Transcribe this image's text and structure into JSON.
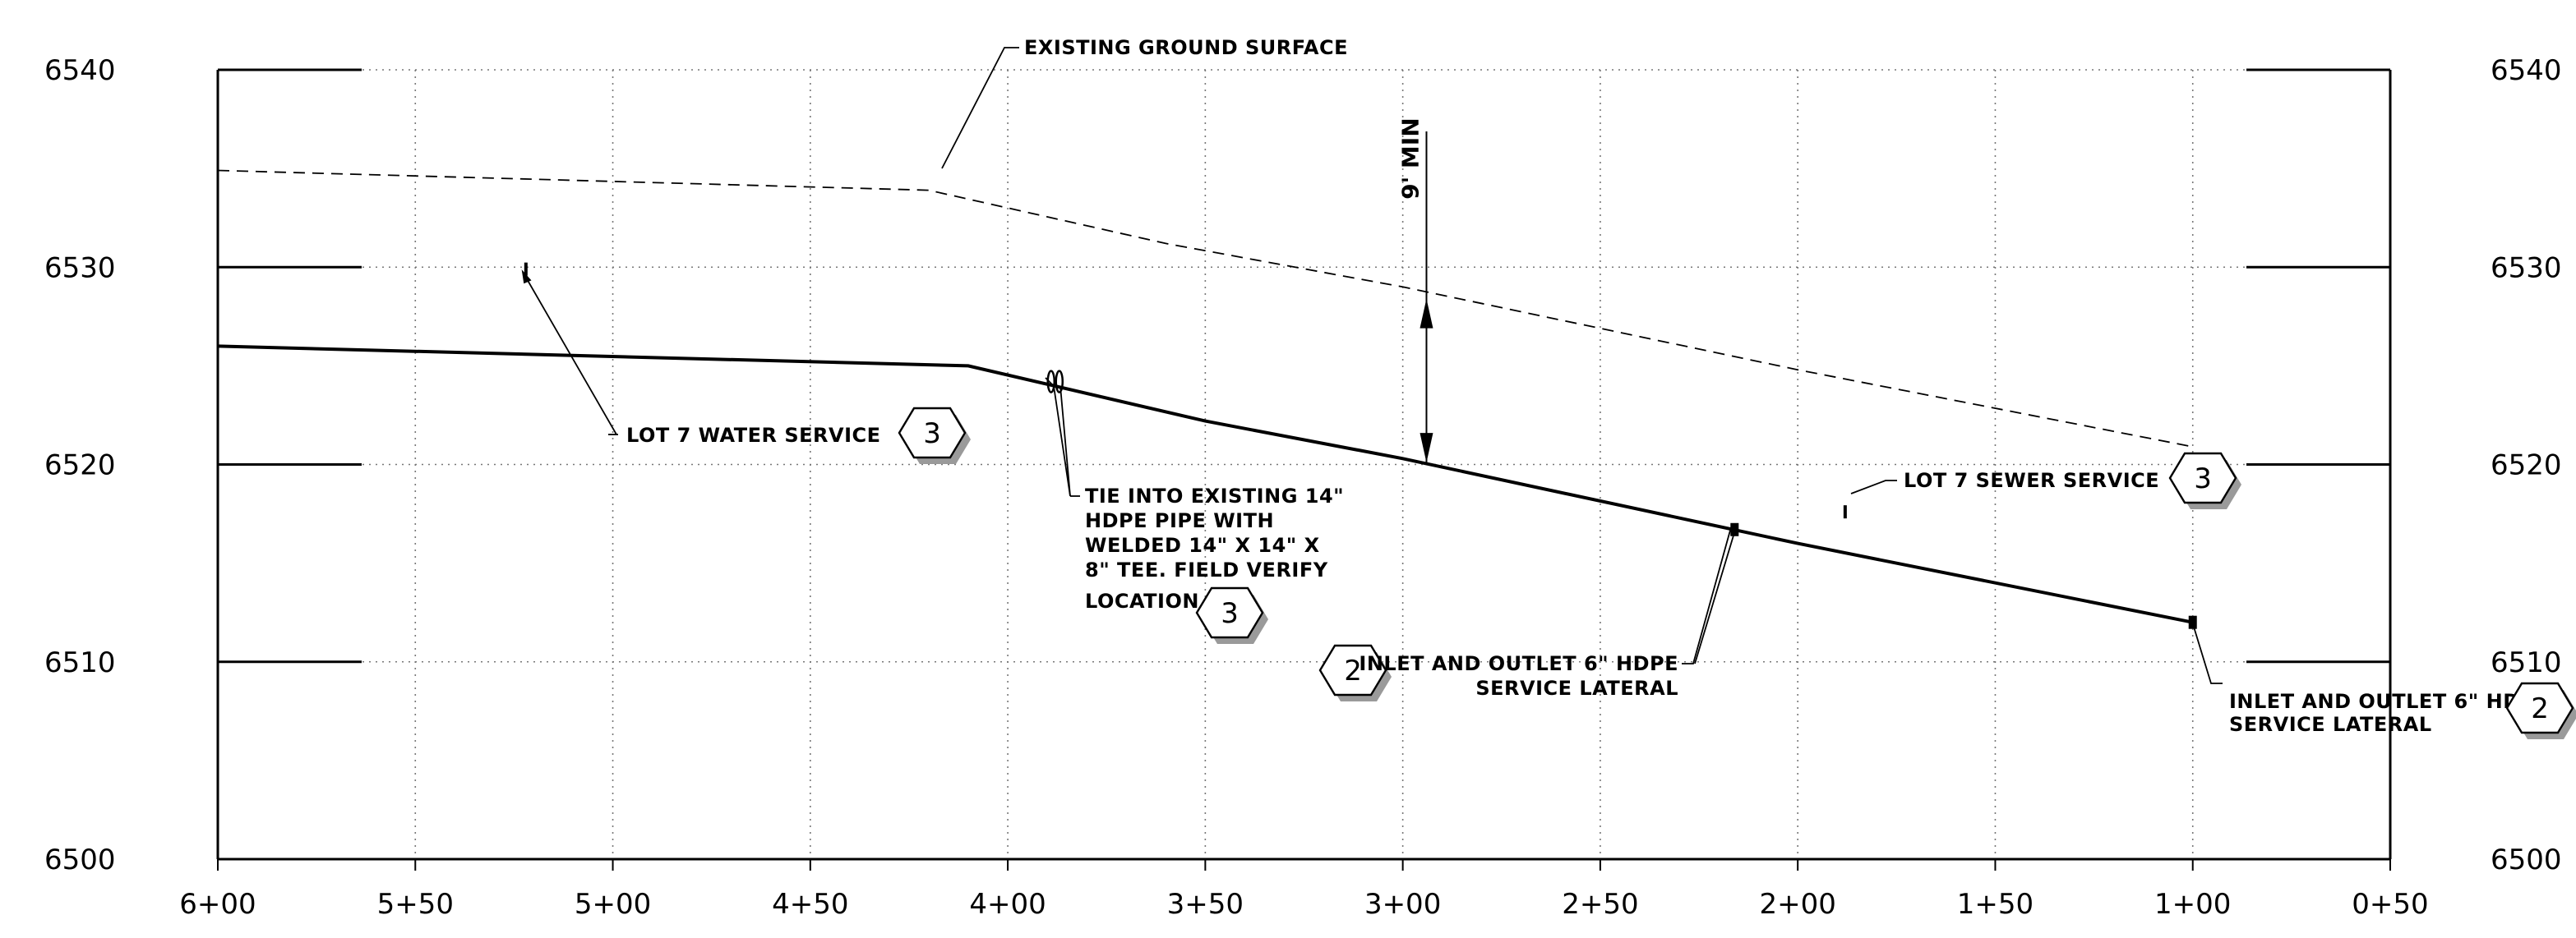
{
  "chart_data": {
    "type": "line",
    "x_axis": {
      "direction": "decreasing-left-to-right",
      "range": [
        6.0,
        0.5
      ],
      "ticks": [
        {
          "value": 6.0,
          "label": "6+00"
        },
        {
          "value": 5.5,
          "label": "5+50"
        },
        {
          "value": 5.0,
          "label": "5+00"
        },
        {
          "value": 4.5,
          "label": "4+50"
        },
        {
          "value": 4.0,
          "label": "4+00"
        },
        {
          "value": 3.5,
          "label": "3+50"
        },
        {
          "value": 3.0,
          "label": "3+00"
        },
        {
          "value": 2.5,
          "label": "2+50"
        },
        {
          "value": 2.0,
          "label": "2+00"
        },
        {
          "value": 1.5,
          "label": "1+50"
        },
        {
          "value": 1.0,
          "label": "1+00"
        },
        {
          "value": 0.5,
          "label": "0+50"
        }
      ]
    },
    "y_axis": {
      "range": [
        6500,
        6540
      ],
      "ticks": [
        {
          "value": 6500,
          "label": "6500"
        },
        {
          "value": 6510,
          "label": "6510"
        },
        {
          "value": 6520,
          "label": "6520"
        },
        {
          "value": 6530,
          "label": "6530"
        },
        {
          "value": 6540,
          "label": "6540"
        }
      ]
    },
    "grid": true,
    "series": [
      {
        "key": "existing-ground",
        "style": "dashed",
        "points": [
          [
            6.0,
            6534.9
          ],
          [
            4.2,
            6533.9
          ],
          [
            3.6,
            6531.2
          ],
          [
            3.0,
            6529.0
          ],
          [
            2.0,
            6524.8
          ],
          [
            1.0,
            6520.9
          ]
        ]
      },
      {
        "key": "water-main",
        "style": "solid",
        "points": [
          [
            6.0,
            6526.0
          ],
          [
            4.1,
            6525.0
          ],
          [
            3.5,
            6522.2
          ],
          [
            3.0,
            6520.3
          ],
          [
            2.0,
            6516.0
          ],
          [
            1.0,
            6512.0
          ]
        ]
      }
    ],
    "dimension": {
      "label": "9' MIN",
      "x": 2.94,
      "y_top": 6528.9,
      "y_bottom": 6520.1,
      "text_y": 6535.5
    },
    "point_marks": [
      {
        "key": "water-service-mark",
        "x": 5.22,
        "y": 6529.9
      },
      {
        "key": "sewer-service-mark",
        "x": 1.88,
        "y": 6517.6
      },
      {
        "key": "tee-fitting-mark",
        "x": 3.88,
        "y": 6524.2
      },
      {
        "key": "lateral-mark-1",
        "x": 2.16,
        "y": 6516.7
      },
      {
        "key": "lateral-mark-2",
        "x": 1.0,
        "y": 6512.0
      }
    ],
    "annotations": {
      "ground_label": "EXISTING GROUND SURFACE",
      "water_service_label": "LOT 7 WATER SERVICE",
      "water_service_ref": "3",
      "tie_in_lines": [
        "TIE INTO EXISTING 14\"",
        "HDPE PIPE WITH",
        "WELDED 14\" X 14\" X",
        "8\" TEE. FIELD VERIFY",
        "LOCATION."
      ],
      "tie_in_ref": "3",
      "lateral_1_ref": "2",
      "lateral_1_lines": [
        "INLET AND OUTLET 6\" HDPE",
        "SERVICE LATERAL"
      ],
      "sewer_service_label": "LOT 7 SEWER SERVICE",
      "sewer_service_ref": "3",
      "lateral_2_lines": [
        "INLET AND OUTLET 6\" HDPE",
        "SERVICE LATERAL"
      ],
      "lateral_2_ref": "2"
    }
  }
}
